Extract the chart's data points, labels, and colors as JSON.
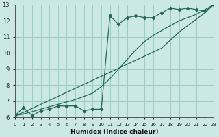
{
  "xlabel": "Humidex (Indice chaleur)",
  "bg_color": "#cce8e4",
  "grid_color": "#99cccc",
  "line_color": "#226655",
  "x_data": [
    0,
    1,
    2,
    3,
    4,
    5,
    6,
    7,
    8,
    9,
    10,
    11,
    12,
    13,
    14,
    15,
    16,
    17,
    18,
    19,
    20,
    21,
    22,
    23
  ],
  "y_main": [
    6.1,
    6.6,
    6.1,
    6.4,
    6.5,
    6.7,
    6.7,
    6.7,
    6.4,
    6.5,
    6.5,
    12.3,
    11.8,
    12.2,
    12.3,
    12.2,
    12.2,
    12.5,
    12.8,
    12.7,
    12.8,
    12.7,
    12.6,
    13.0
  ],
  "y_trend1": [
    6.1,
    6.2,
    6.35,
    6.5,
    6.65,
    6.8,
    6.95,
    7.1,
    7.3,
    7.5,
    7.9,
    8.4,
    9.0,
    9.6,
    10.2,
    10.7,
    11.1,
    11.4,
    11.7,
    12.0,
    12.2,
    12.4,
    12.7,
    13.0
  ],
  "y_trend2": [
    6.1,
    6.3,
    6.55,
    6.8,
    7.05,
    7.3,
    7.55,
    7.8,
    8.05,
    8.3,
    8.55,
    8.8,
    9.05,
    9.3,
    9.55,
    9.8,
    10.05,
    10.3,
    10.8,
    11.3,
    11.7,
    12.1,
    12.5,
    13.0
  ],
  "xlim": [
    0,
    23
  ],
  "ylim": [
    6,
    13
  ],
  "yticks": [
    6,
    7,
    8,
    9,
    10,
    11,
    12,
    13
  ],
  "xticks": [
    0,
    1,
    2,
    3,
    4,
    5,
    6,
    7,
    8,
    9,
    10,
    11,
    12,
    13,
    14,
    15,
    16,
    17,
    18,
    19,
    20,
    21,
    22,
    23
  ]
}
